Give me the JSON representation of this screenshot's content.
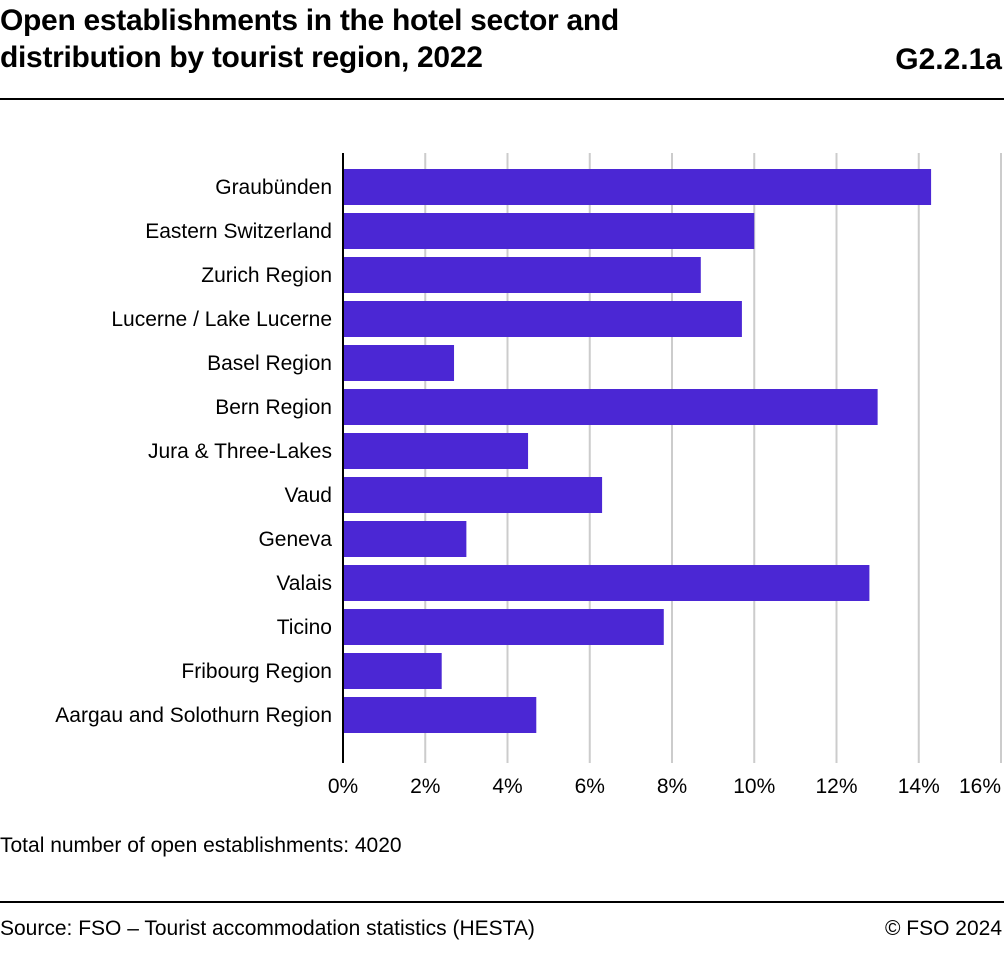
{
  "header": {
    "title_line1": "Open establishments in the hotel sector and",
    "title_line2": "distribution by tourist region, 2022",
    "chart_id": "G2.2.1a"
  },
  "footer": {
    "note": "Total number of open establishments: 4020",
    "source": "Source: FSO – Tourist accommodation statistics (HESTA)",
    "copyright": "© FSO 2024"
  },
  "colors": {
    "bar": "#4b27d4",
    "grid": "#cccccc",
    "axis": "#000000"
  },
  "chart_data": {
    "type": "bar",
    "orientation": "horizontal",
    "title": "Open establishments in the hotel sector and distribution by tourist region, 2022",
    "categories": [
      "Graubünden",
      "Eastern Switzerland",
      "Zurich Region",
      "Lucerne / Lake Lucerne",
      "Basel Region",
      "Bern Region",
      "Jura & Three-Lakes",
      "Vaud",
      "Geneva",
      "Valais",
      "Ticino",
      "Fribourg Region",
      "Aargau and Solothurn Region"
    ],
    "values": [
      14.3,
      10.0,
      8.7,
      9.7,
      2.7,
      13.0,
      4.5,
      6.3,
      3.0,
      12.8,
      7.8,
      2.4,
      4.7
    ],
    "unit": "%",
    "xlim": [
      0,
      16
    ],
    "xticks": [
      0,
      2,
      4,
      6,
      8,
      10,
      12,
      14,
      16
    ],
    "xtick_labels": [
      "0%",
      "2%",
      "4%",
      "6%",
      "8%",
      "10%",
      "12%",
      "14%",
      "16%"
    ],
    "grid": true,
    "xlabel": "",
    "ylabel": ""
  }
}
